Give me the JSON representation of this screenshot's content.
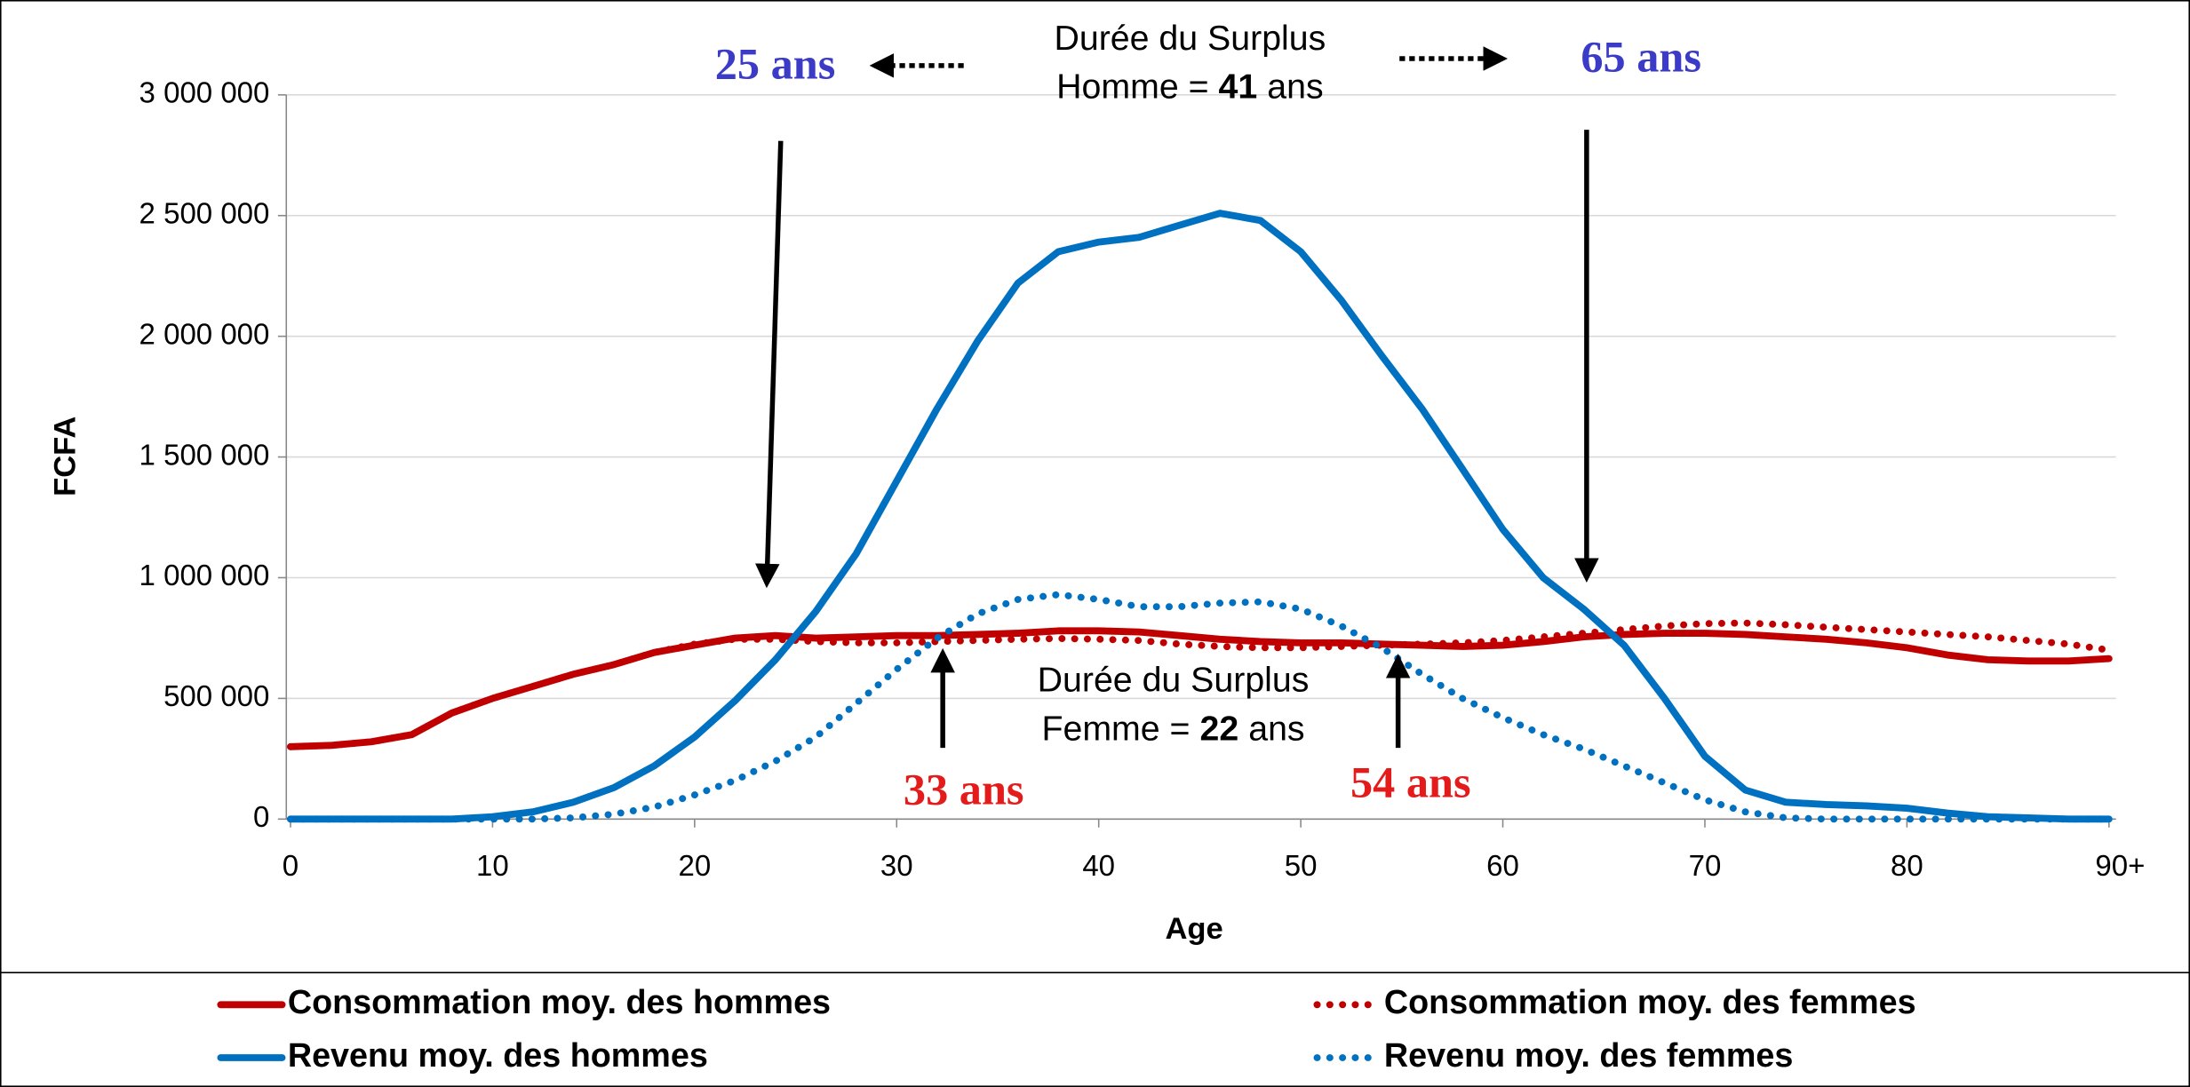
{
  "chart_data": {
    "type": "line",
    "x_label": "Age",
    "y_label": "FCFA",
    "x": [
      0,
      2,
      4,
      6,
      8,
      10,
      12,
      14,
      16,
      18,
      20,
      22,
      24,
      26,
      28,
      30,
      32,
      34,
      36,
      38,
      40,
      42,
      44,
      46,
      48,
      50,
      52,
      54,
      56,
      58,
      60,
      62,
      64,
      66,
      68,
      70,
      72,
      74,
      76,
      78,
      80,
      82,
      84,
      86,
      88,
      90
    ],
    "xlim": [
      0,
      90
    ],
    "xticks": [
      0,
      10,
      20,
      30,
      40,
      50,
      60,
      70,
      80,
      {
        "value": 90,
        "label": "90+"
      }
    ],
    "ylim": [
      0,
      3000000
    ],
    "yticks": [
      0,
      {
        "value": 500000,
        "label": "500 000"
      },
      {
        "value": 1000000,
        "label": "1 000 000"
      },
      {
        "value": 1500000,
        "label": "1 500 000"
      },
      {
        "value": 2000000,
        "label": "2 000 000"
      },
      {
        "value": 2500000,
        "label": "2 500 000"
      },
      {
        "value": 3000000,
        "label": "3 000 000"
      }
    ],
    "grid": true,
    "series": [
      {
        "name": "Consommation moy. des hommes",
        "color": "#c00000",
        "dash": "solid",
        "values": [
          300000,
          305000,
          320000,
          350000,
          440000,
          500000,
          550000,
          600000,
          640000,
          690000,
          720000,
          750000,
          760000,
          750000,
          755000,
          760000,
          760000,
          765000,
          770000,
          780000,
          780000,
          775000,
          760000,
          745000,
          735000,
          730000,
          730000,
          725000,
          720000,
          715000,
          720000,
          735000,
          755000,
          765000,
          770000,
          770000,
          765000,
          755000,
          745000,
          730000,
          710000,
          680000,
          660000,
          655000,
          655000,
          665000
        ]
      },
      {
        "name": "Consommation moy. des femmes",
        "color": "#c00000",
        "dash": "dotted",
        "values": [
          300000,
          305000,
          320000,
          350000,
          440000,
          500000,
          550000,
          600000,
          640000,
          690000,
          725000,
          745000,
          745000,
          735000,
          730000,
          730000,
          735000,
          740000,
          745000,
          748000,
          745000,
          740000,
          725000,
          715000,
          710000,
          710000,
          715000,
          720000,
          725000,
          730000,
          740000,
          755000,
          770000,
          785000,
          800000,
          810000,
          812000,
          805000,
          795000,
          785000,
          775000,
          765000,
          755000,
          740000,
          725000,
          700000
        ]
      },
      {
        "name": "Revenu moy. des hommes",
        "color": "#0070c0",
        "dash": "solid",
        "values": [
          0,
          0,
          0,
          0,
          0,
          10000,
          30000,
          70000,
          130000,
          220000,
          340000,
          490000,
          660000,
          860000,
          1100000,
          1400000,
          1700000,
          1980000,
          2220000,
          2350000,
          2390000,
          2410000,
          2460000,
          2510000,
          2480000,
          2350000,
          2150000,
          1920000,
          1700000,
          1450000,
          1200000,
          1000000,
          870000,
          720000,
          500000,
          260000,
          120000,
          70000,
          60000,
          55000,
          45000,
          25000,
          10000,
          5000,
          0,
          0
        ]
      },
      {
        "name": "Revenu moy. des femmes",
        "color": "#0070c0",
        "dash": "dotted",
        "values": [
          0,
          0,
          0,
          0,
          0,
          0,
          0,
          5000,
          20000,
          50000,
          100000,
          160000,
          240000,
          340000,
          480000,
          620000,
          750000,
          850000,
          910000,
          930000,
          910000,
          880000,
          880000,
          895000,
          900000,
          870000,
          800000,
          710000,
          600000,
          500000,
          420000,
          350000,
          290000,
          220000,
          150000,
          80000,
          30000,
          5000,
          0,
          0,
          0,
          0,
          0,
          0,
          0,
          0
        ]
      }
    ],
    "annotations": {
      "male_start": "25 ans",
      "male_end": "65 ans",
      "female_start": "33 ans",
      "female_end": "54 ans",
      "male_surplus": {
        "line1": "Durée du Surplus",
        "prefix": "Homme  =",
        "value": "41",
        "suffix": "ans"
      },
      "female_surplus": {
        "line1": "Durée du Surplus",
        "prefix": "Femme  =",
        "value": "22",
        "suffix": "ans"
      }
    }
  }
}
